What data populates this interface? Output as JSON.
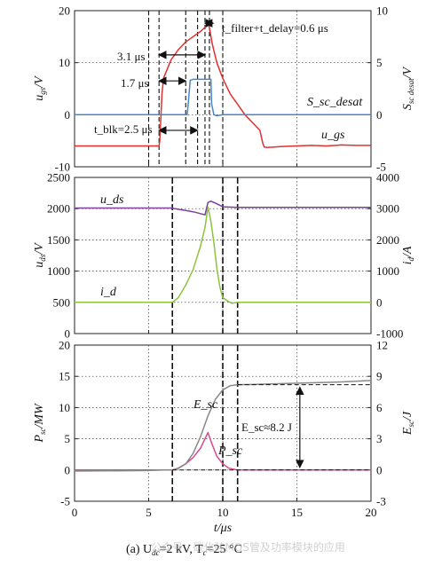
{
  "caption": "(a) U",
  "caption_dc": "dc",
  "caption_mid": "=2 kV, T",
  "caption_c": "c",
  "caption_end": "=25 °C",
  "watermark": "公众号 · 碳化硅MOS管及功率模块的应用",
  "chart_data": [
    {
      "id": "top",
      "type": "line",
      "xlim": [
        0,
        20
      ],
      "ylim_left": [
        -10,
        20
      ],
      "ylim_right": [
        -5,
        10
      ],
      "yticks_left": [
        -10,
        0,
        10,
        20
      ],
      "yticks_right": [
        -5,
        0,
        5,
        10
      ],
      "ylabel_left": "u_gs/V",
      "ylabel_right": "S_sc_desat/V",
      "grid": "dotted",
      "series": [
        {
          "name": "u_gs",
          "axis": "left",
          "color": "#e0312f",
          "x": [
            0,
            5.7,
            5.75,
            5.9,
            6,
            6.5,
            7,
            7.5,
            8,
            8.5,
            9,
            9.05,
            9.3,
            9.6,
            10,
            10.5,
            11,
            11.5,
            12,
            12.5,
            12.7,
            12.8,
            13,
            14,
            15,
            16,
            17,
            18,
            19,
            20
          ],
          "y": [
            -6,
            -6,
            -5,
            4,
            7,
            10.5,
            12.5,
            14,
            15,
            16,
            17.3,
            17.5,
            13.5,
            10,
            7,
            4,
            2,
            0,
            -1.5,
            -3,
            -5.5,
            -6.2,
            -6.3,
            -6.1,
            -6,
            -5.9,
            -6,
            -5.8,
            -5.9,
            -5.9
          ]
        },
        {
          "name": "S_sc_desat",
          "axis": "right",
          "color": "#4a86c8",
          "x": [
            0,
            7.6,
            7.65,
            7.8,
            8,
            9,
            9.2,
            9.25,
            9.4,
            9.6,
            10,
            12,
            14,
            16,
            20
          ],
          "y": [
            0,
            0,
            0.8,
            3.3,
            3.4,
            3.4,
            3.4,
            1,
            0,
            -0.1,
            0,
            0,
            0,
            0,
            0
          ]
        }
      ],
      "vlines": [
        5,
        5.7,
        7.5,
        8.3,
        8.8,
        9.1,
        10
      ],
      "annotations": {
        "filter_delay": "t_filter+t_delay=0.6 μs",
        "span_31": "3.1 μs",
        "span_17": "1.7 μs",
        "blk": "t_blk=2.5 μs",
        "s_label": "S_sc_desat",
        "u_label": "u_gs"
      }
    },
    {
      "id": "mid",
      "type": "line",
      "xlim": [
        0,
        20
      ],
      "ylim_left": [
        0,
        2500
      ],
      "ylim_right": [
        -1000,
        4000
      ],
      "yticks_left": [
        0,
        500,
        1000,
        1500,
        2000,
        2500
      ],
      "yticks_right": [
        -1000,
        0,
        1000,
        2000,
        3000,
        4000
      ],
      "ylabel_left": "u_ds/V",
      "ylabel_right": "i_d/A",
      "grid": "dotted",
      "series": [
        {
          "name": "u_ds",
          "axis": "left",
          "color": "#7b3fa0",
          "x": [
            0,
            6.5,
            7,
            7.5,
            8,
            8.5,
            8.8,
            9,
            9.2,
            9.5,
            10,
            11,
            12,
            14,
            16,
            18,
            20
          ],
          "y": [
            2010,
            2010,
            1990,
            1970,
            1950,
            1920,
            1900,
            2100,
            2120,
            2090,
            2030,
            2020,
            2020,
            2020,
            2020,
            2020,
            2020
          ]
        },
        {
          "name": "i_d",
          "axis": "right",
          "color": "#8cc43c",
          "x": [
            0,
            6.6,
            7,
            7.5,
            8,
            8.5,
            8.8,
            9,
            9.2,
            9.4,
            9.6,
            9.8,
            10,
            10.3,
            10.6,
            11,
            12,
            14,
            16,
            18,
            20
          ],
          "y": [
            0,
            0,
            150,
            550,
            1050,
            1800,
            2400,
            3050,
            2600,
            1900,
            1100,
            500,
            150,
            50,
            -30,
            0,
            0,
            0,
            0,
            0,
            0
          ]
        }
      ],
      "vlines": [
        5,
        6.6,
        10,
        11
      ],
      "annotations": {
        "u_label": "u_ds",
        "i_label": "i_d"
      }
    },
    {
      "id": "bottom",
      "type": "line",
      "xlim": [
        0,
        20
      ],
      "ylim_left": [
        -5,
        20
      ],
      "ylim_right": [
        -3,
        12
      ],
      "yticks_left": [
        -5,
        0,
        5,
        10,
        15,
        20
      ],
      "yticks_right": [
        -3,
        0,
        3,
        6,
        9,
        12
      ],
      "xticks": [
        0,
        5,
        10,
        15,
        20
      ],
      "ylabel_left": "P_sc/MW",
      "ylabel_right": "E_sc/J",
      "xlabel": "t/μs",
      "grid": "dotted",
      "series": [
        {
          "name": "P_sc",
          "axis": "left",
          "color": "#d8478f",
          "x": [
            0,
            6.6,
            7,
            7.5,
            8,
            8.5,
            8.8,
            9,
            9.3,
            9.6,
            10,
            10.4,
            11,
            12,
            20
          ],
          "y": [
            0,
            0,
            0.3,
            1,
            2,
            3.5,
            5,
            6,
            4,
            2.2,
            1,
            0.3,
            0,
            0,
            0
          ]
        },
        {
          "name": "E_sc",
          "axis": "right",
          "color": "#888888",
          "x": [
            0,
            5,
            6,
            6.6,
            7,
            7.5,
            8,
            8.5,
            9,
            9.5,
            10,
            10.5,
            11,
            12,
            14,
            16,
            18,
            20
          ],
          "y": [
            -0.1,
            -0.05,
            0,
            0.02,
            0.15,
            0.6,
            1.6,
            3.2,
            5.2,
            6.8,
            7.7,
            8.1,
            8.2,
            8.22,
            8.3,
            8.38,
            8.46,
            8.6
          ]
        }
      ],
      "vlines": [
        5,
        6.6,
        10,
        11
      ],
      "annotations": {
        "E_label": "E_sc",
        "P_label": "P_sc",
        "energy": "E_sc≈8.2 J"
      }
    }
  ]
}
